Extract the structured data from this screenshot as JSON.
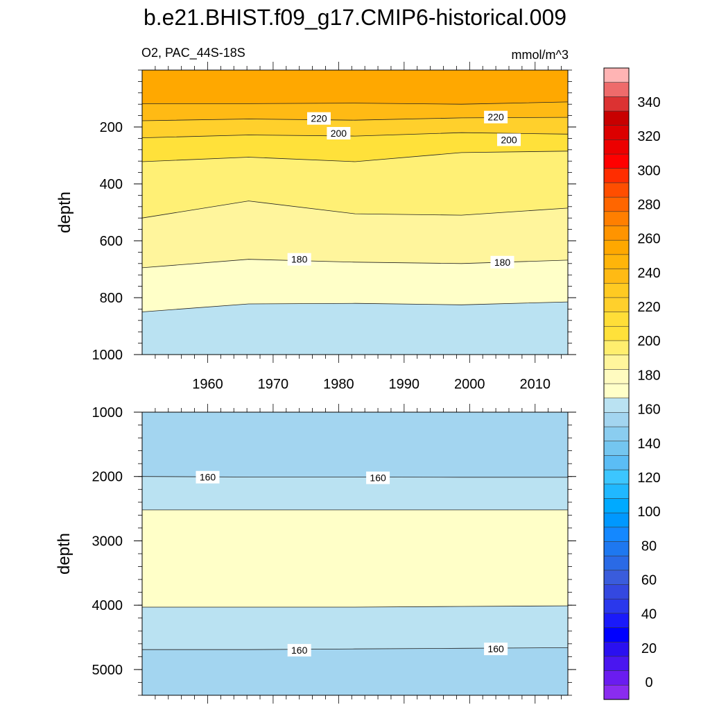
{
  "chart_data": [
    {
      "type": "contour",
      "title": "b.e21.BHIST.f09_g17.CMIP6-historical.009",
      "subtitle_left": "O2, PAC_44S-18S",
      "subtitle_right": "mmol/m^3",
      "ylabel": "depth",
      "xlim": [
        1950,
        2015
      ],
      "ylim": [
        1000,
        0
      ],
      "xticks": [
        "1960",
        "1970",
        "1980",
        "1990",
        "2000",
        "2010"
      ],
      "yticks": [
        "200",
        "400",
        "600",
        "800",
        "1000"
      ],
      "bands": [
        {
          "color": "#FFA800",
          "depths": [
            0,
            0,
            0,
            0,
            0
          ]
        },
        {
          "color": "#FFBA14",
          "depths": [
            118,
            118,
            116,
            120,
            112
          ]
        },
        {
          "color": "#FFD02C",
          "depths": [
            178,
            172,
            176,
            168,
            166
          ]
        },
        {
          "color": "#FFE13A",
          "depths": [
            238,
            228,
            232,
            220,
            225
          ]
        },
        {
          "color": "#FFF075",
          "depths": [
            322,
            306,
            322,
            290,
            285
          ]
        },
        {
          "color": "#FFF59C",
          "depths": [
            520,
            460,
            505,
            510,
            485
          ]
        },
        {
          "color": "#FFFFC8",
          "depths": [
            695,
            665,
            675,
            680,
            668
          ]
        },
        {
          "color": "#BAE2F2",
          "depths": [
            850,
            822,
            820,
            825,
            815
          ]
        }
      ],
      "contour_labels": [
        {
          "text": "220",
          "x": 1977,
          "depth": 170
        },
        {
          "text": "220",
          "x": 2004,
          "depth": 165
        },
        {
          "text": "200",
          "x": 1980,
          "depth": 222
        },
        {
          "text": "200",
          "x": 2006,
          "depth": 245
        },
        {
          "text": "180",
          "x": 1974,
          "depth": 665
        },
        {
          "text": "180",
          "x": 2005,
          "depth": 675
        }
      ]
    },
    {
      "type": "contour",
      "ylabel": "depth",
      "xlim": [
        1950,
        2015
      ],
      "ylim": [
        5400,
        1000
      ],
      "yticks": [
        "1000",
        "2000",
        "3000",
        "4000",
        "5000"
      ],
      "bands": [
        {
          "color": "#A3D5F0",
          "depths": [
            1000,
            1000,
            1000,
            1000,
            1000
          ]
        },
        {
          "color": "#BAE2F2",
          "depths": [
            2000,
            2008,
            2008,
            2012,
            2012
          ]
        },
        {
          "color": "#FFFFC8",
          "depths": [
            2520,
            2520,
            2520,
            2520,
            2520
          ]
        },
        {
          "color": "#BAE2F2",
          "depths": [
            4030,
            4030,
            4030,
            4020,
            4010
          ]
        },
        {
          "color": "#A3D5F0",
          "depths": [
            4690,
            4690,
            4680,
            4670,
            4660
          ]
        }
      ],
      "contour_labels": [
        {
          "text": "160",
          "x": 1960,
          "depth": 2010
        },
        {
          "text": "160",
          "x": 1986,
          "depth": 2020
        },
        {
          "text": "160",
          "x": 1974,
          "depth": 4700
        },
        {
          "text": "160",
          "x": 2004,
          "depth": 4680
        }
      ]
    }
  ],
  "colorbar": {
    "labels": [
      "340",
      "320",
      "300",
      "280",
      "260",
      "240",
      "220",
      "200",
      "180",
      "160",
      "140",
      "120",
      "100",
      "80",
      "60",
      "40",
      "20",
      "0"
    ],
    "colors": [
      "#FFB4B4",
      "#EE6B6B",
      "#DC3232",
      "#C80000",
      "#DC0000",
      "#EC0000",
      "#FF0000",
      "#FF2D00",
      "#FF4E00",
      "#FF6600",
      "#FF7F00",
      "#FF9400",
      "#FFA800",
      "#FFB50A",
      "#FFBA14",
      "#FFCA22",
      "#FFD02C",
      "#FFDE38",
      "#FFE13A",
      "#FFEE6E",
      "#FFF59C",
      "#FFFBC0",
      "#FFFFC8",
      "#BAE2F2",
      "#A3D5F0",
      "#8ACDF0",
      "#74C6F0",
      "#5BBDF5",
      "#3CC6FF",
      "#20B8FF",
      "#00AAFF",
      "#0098FF",
      "#1488FF",
      "#1E78F0",
      "#2A6AE6",
      "#3A5CDC",
      "#3448E0",
      "#2A38EC",
      "#1A1AFA",
      "#0000FF",
      "#2A10F0",
      "#4A16F0",
      "#6A1CF0",
      "#8A2CF0"
    ]
  }
}
